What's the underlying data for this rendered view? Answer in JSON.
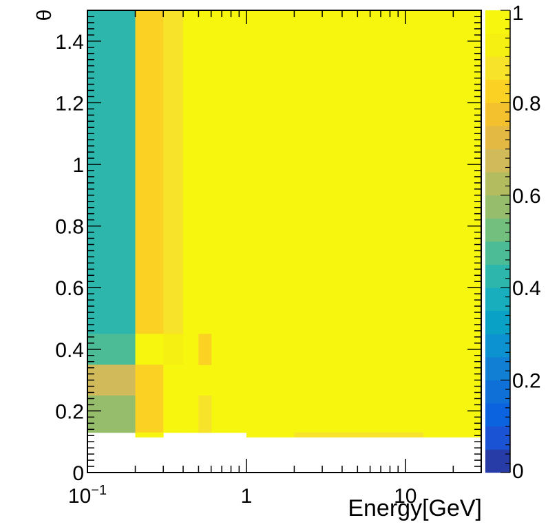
{
  "chart_data": {
    "type": "heatmap",
    "title": "",
    "xlabel": "Energy[GeV]",
    "ylabel": "θ",
    "x_scale": "log",
    "xlim": [
      0.1,
      30
    ],
    "ylim": [
      0,
      1.5
    ],
    "x_ticks": [
      {
        "value": 0.1,
        "base": "10",
        "exp": "−1"
      },
      {
        "value": 1,
        "base": "1",
        "exp": ""
      },
      {
        "value": 10,
        "base": "10",
        "exp": ""
      }
    ],
    "y_ticks": [
      {
        "value": 0,
        "label": "0"
      },
      {
        "value": 0.2,
        "label": "0.2"
      },
      {
        "value": 0.4,
        "label": "0.4"
      },
      {
        "value": 0.6,
        "label": "0.6"
      },
      {
        "value": 0.8,
        "label": "0.8"
      },
      {
        "value": 1.0,
        "label": "1"
      },
      {
        "value": 1.2,
        "label": "1.2"
      },
      {
        "value": 1.4,
        "label": "1.4"
      }
    ],
    "colorbar": {
      "range": [
        0,
        1
      ],
      "ticks": [
        {
          "value": 0,
          "label": "0"
        },
        {
          "value": 0.2,
          "label": "0.2"
        },
        {
          "value": 0.4,
          "label": "0.4"
        },
        {
          "value": 0.6,
          "label": "0.6"
        },
        {
          "value": 0.8,
          "label": "0.8"
        },
        {
          "value": 1.0,
          "label": "1"
        }
      ],
      "colors": [
        "#283ca8",
        "#1a53d3",
        "#0b63e0",
        "#0f70d8",
        "#1180d4",
        "#0c92d1",
        "#0aa1c7",
        "#18aebe",
        "#2cb6ac",
        "#4bbc95",
        "#73bf7d",
        "#95bd6c",
        "#b3bd60",
        "#d0ba5a",
        "#e3b944",
        "#f3c12e",
        "#fbd224",
        "#f7e32a",
        "#f5f012",
        "#f6f60f"
      ]
    },
    "cells": [
      {
        "x": [
          0.1,
          0.2
        ],
        "y": [
          0.45,
          1.5
        ],
        "value": 0.42
      },
      {
        "x": [
          0.2,
          0.3
        ],
        "y": [
          0.45,
          1.5
        ],
        "value": 0.82
      },
      {
        "x": [
          0.3,
          0.4
        ],
        "y": [
          0.45,
          1.5
        ],
        "value": 0.87
      },
      {
        "x": [
          0.4,
          30
        ],
        "y": [
          0.13,
          1.5
        ],
        "value": 1.0
      },
      {
        "x": [
          0.1,
          0.2
        ],
        "y": [
          0.35,
          0.45
        ],
        "value": 0.47
      },
      {
        "x": [
          0.2,
          0.3
        ],
        "y": [
          0.35,
          0.45
        ],
        "value": 0.97
      },
      {
        "x": [
          0.3,
          0.4
        ],
        "y": [
          0.35,
          0.45
        ],
        "value": 0.9
      },
      {
        "x": [
          0.5,
          0.6
        ],
        "y": [
          0.35,
          0.45
        ],
        "value": 0.82
      },
      {
        "x": [
          0.1,
          0.2
        ],
        "y": [
          0.25,
          0.35
        ],
        "value": 0.68
      },
      {
        "x": [
          0.2,
          0.3
        ],
        "y": [
          0.25,
          0.35
        ],
        "value": 0.82
      },
      {
        "x": [
          0.3,
          0.4
        ],
        "y": [
          0.25,
          0.35
        ],
        "value": 0.95
      },
      {
        "x": [
          0.1,
          0.2
        ],
        "y": [
          0.13,
          0.25
        ],
        "value": 0.55
      },
      {
        "x": [
          0.2,
          0.3
        ],
        "y": [
          0.13,
          0.25
        ],
        "value": 0.82
      },
      {
        "x": [
          0.3,
          0.4
        ],
        "y": [
          0.13,
          0.25
        ],
        "value": 0.95
      },
      {
        "x": [
          0.5,
          0.6
        ],
        "y": [
          0.13,
          0.25
        ],
        "value": 0.88
      },
      {
        "x": [
          0.2,
          0.3
        ],
        "y": [
          0.115,
          0.13
        ],
        "value": 1.0
      },
      {
        "x": [
          1,
          2
        ],
        "y": [
          0.115,
          0.13
        ],
        "value": 1.0
      },
      {
        "x": [
          2,
          13
        ],
        "y": [
          0.115,
          0.13
        ],
        "value": 0.88
      },
      {
        "x": [
          13,
          30
        ],
        "y": [
          0.115,
          0.13
        ],
        "value": 1.0
      }
    ]
  }
}
